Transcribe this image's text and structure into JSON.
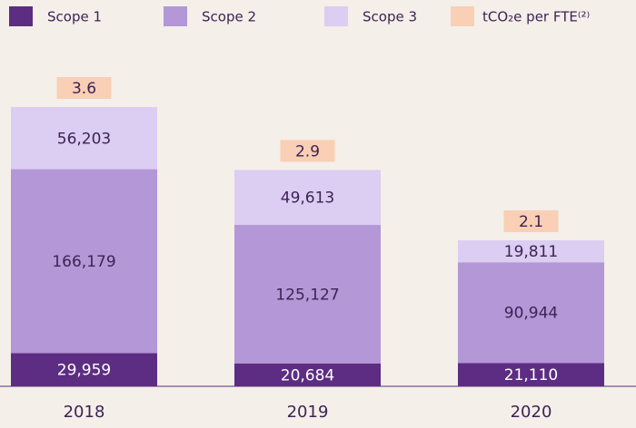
{
  "chart_data": {
    "type": "stacked_bar",
    "categories": [
      "2018",
      "2019",
      "2020"
    ],
    "series": [
      {
        "name": "Scope 1",
        "color": "#5c2d82",
        "values": [
          29959,
          20684,
          21110
        ],
        "value_labels": [
          "29,959",
          "20,684",
          "21,110"
        ]
      },
      {
        "name": "Scope 2",
        "color": "#b397d6",
        "values": [
          166179,
          125127,
          90944
        ],
        "value_labels": [
          "166,179",
          "125,127",
          "90,944"
        ]
      },
      {
        "name": "Scope 3",
        "color": "#dccdf2",
        "values": [
          56203,
          49613,
          19811
        ],
        "value_labels": [
          "56,203",
          "49,613",
          "19,811"
        ]
      },
      {
        "name": "tCO₂e per FTE⁽²⁾",
        "color": "#f9cfb5",
        "values": [
          3.6,
          2.9,
          2.1
        ],
        "role": "annotation"
      }
    ]
  }
}
